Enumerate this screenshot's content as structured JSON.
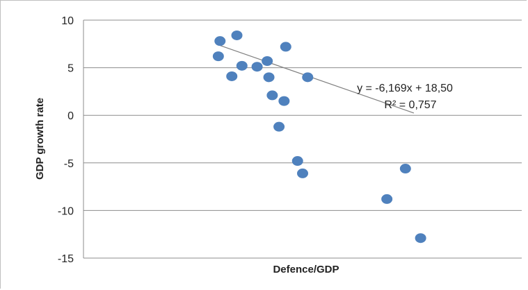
{
  "chart_data": {
    "type": "scatter",
    "title": "",
    "xlabel": "Defence/GDP",
    "ylabel": "GDP growth rate",
    "ylim": [
      -15,
      10
    ],
    "y_ticks": [
      -15,
      -10,
      -5,
      0,
      5,
      10
    ],
    "y_tick_labels": [
      "-15",
      "-10",
      "-5",
      "0",
      "5",
      "10"
    ],
    "x_ticks_visible": false,
    "grid": "horizontal",
    "point_color": "#4f81bd",
    "line_color": "#7f7f7f",
    "series": [
      {
        "points": [
          [
            1.81,
            7.8
          ],
          [
            1.8,
            6.2
          ],
          [
            1.91,
            8.4
          ],
          [
            1.94,
            5.2
          ],
          [
            1.88,
            4.1
          ],
          [
            2.03,
            5.1
          ],
          [
            2.09,
            5.7
          ],
          [
            2.1,
            4.0
          ],
          [
            2.12,
            2.1
          ],
          [
            2.19,
            1.5
          ],
          [
            2.2,
            7.2
          ],
          [
            2.16,
            -1.2
          ],
          [
            2.27,
            -4.8
          ],
          [
            2.3,
            -6.1
          ],
          [
            2.33,
            4.0
          ],
          [
            2.8,
            -8.8
          ],
          [
            2.91,
            -5.6
          ],
          [
            3.0,
            -12.9
          ]
        ]
      }
    ],
    "trendline": {
      "equation": "y = -6,169x + 18,50",
      "r_squared": "R² = 0,757",
      "slope": -6.169,
      "intercept": 18.5,
      "x_from": 1.8,
      "x_to": 2.96
    }
  }
}
